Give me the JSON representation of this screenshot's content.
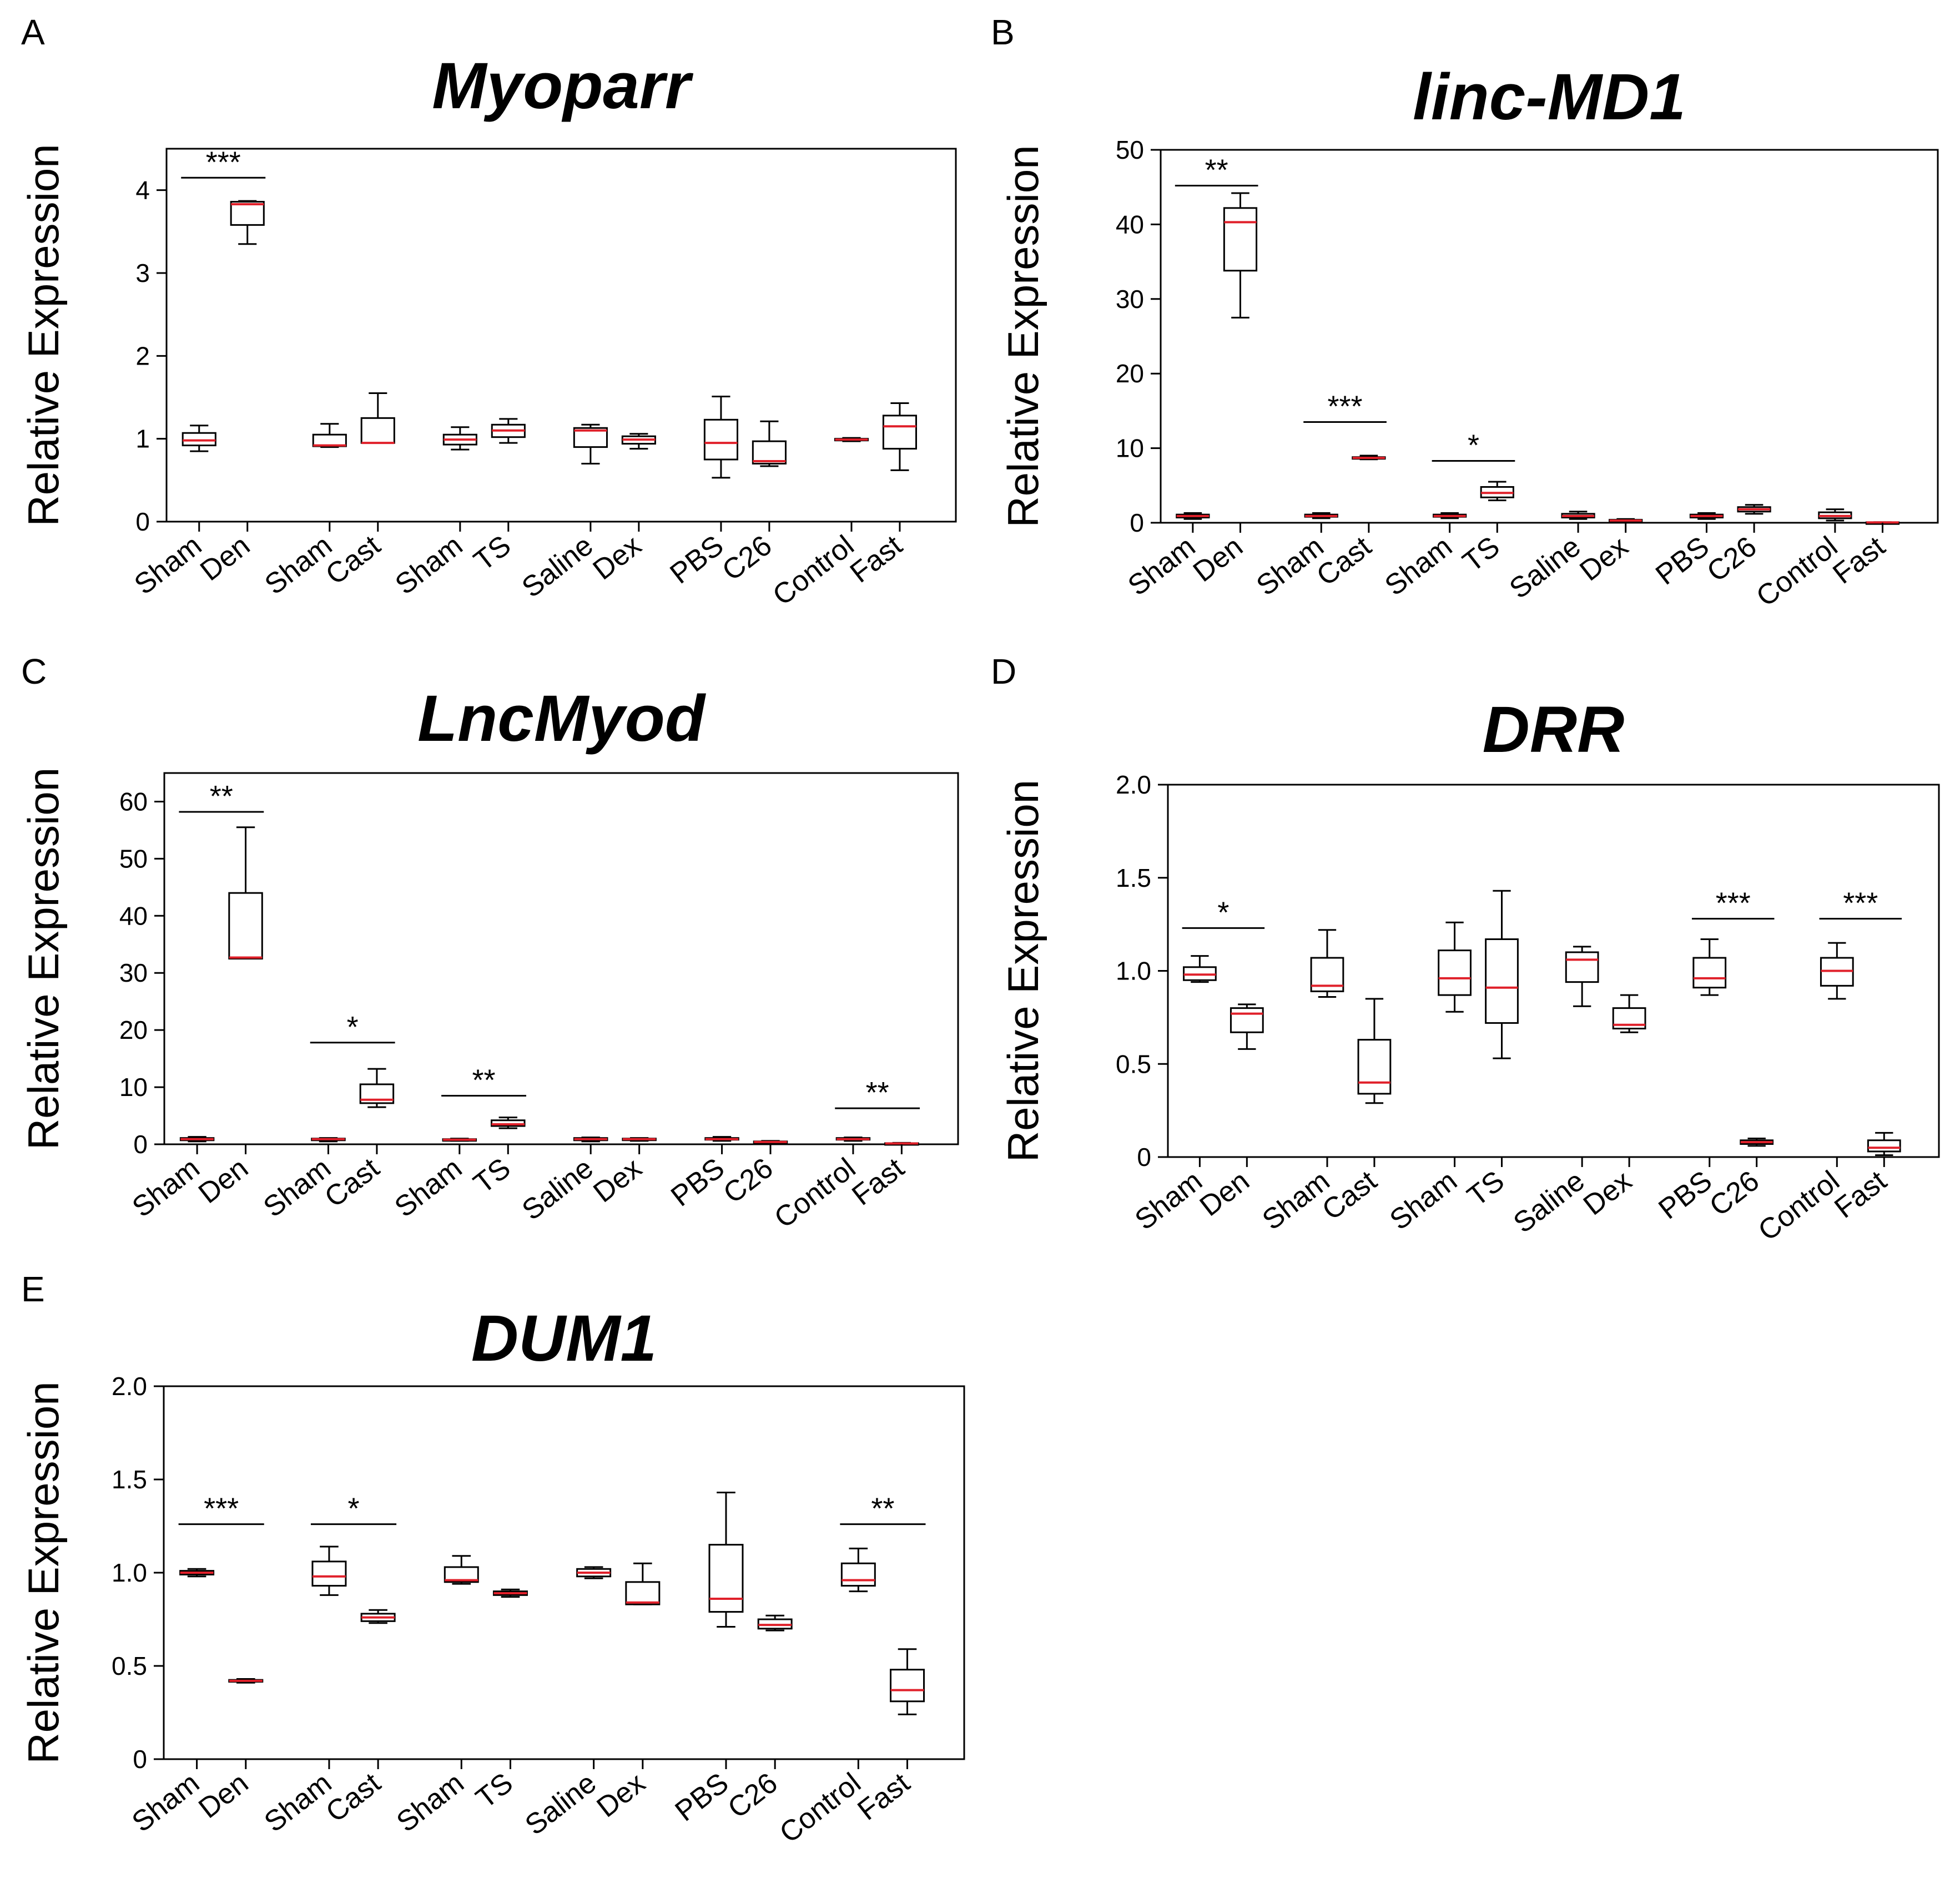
{
  "figure": {
    "chart_data": [
      {
        "type": "box",
        "panel": "A",
        "title": "Myoparr",
        "ylabel": "Relative Expression",
        "ylim": [
          0,
          4.5
        ],
        "yticks": [
          0,
          1,
          2,
          3,
          4
        ],
        "yticklabels": [
          "0",
          "1",
          "2",
          "3",
          "4"
        ],
        "grid": false,
        "categories": [
          "Sham",
          "Den",
          "Sham",
          "Cast",
          "Sham",
          "TS",
          "Saline",
          "Dex",
          "PBS",
          "C26",
          "Control",
          "Fast"
        ],
        "boxes": [
          {
            "min": 0.85,
            "q1": 0.92,
            "median": 0.98,
            "q3": 1.07,
            "max": 1.16
          },
          {
            "min": 3.35,
            "q1": 3.58,
            "median": 3.83,
            "q3": 3.86,
            "max": 3.87
          },
          {
            "min": 0.9,
            "q1": 0.91,
            "median": 0.92,
            "q3": 1.05,
            "max": 1.18
          },
          {
            "min": 0.95,
            "q1": 0.95,
            "median": 0.95,
            "q3": 1.25,
            "max": 1.55
          },
          {
            "min": 0.87,
            "q1": 0.93,
            "median": 0.99,
            "q3": 1.05,
            "max": 1.14
          },
          {
            "min": 0.95,
            "q1": 1.02,
            "median": 1.1,
            "q3": 1.17,
            "max": 1.24
          },
          {
            "min": 0.7,
            "q1": 0.9,
            "median": 1.1,
            "q3": 1.13,
            "max": 1.17
          },
          {
            "min": 0.88,
            "q1": 0.94,
            "median": 0.99,
            "q3": 1.03,
            "max": 1.06
          },
          {
            "min": 0.53,
            "q1": 0.75,
            "median": 0.95,
            "q3": 1.23,
            "max": 1.51
          },
          {
            "min": 0.67,
            "q1": 0.7,
            "median": 0.73,
            "q3": 0.97,
            "max": 1.21
          },
          {
            "min": 0.97,
            "q1": 0.98,
            "median": 0.99,
            "q3": 1.0,
            "max": 1.01
          },
          {
            "min": 0.62,
            "q1": 0.88,
            "median": 1.15,
            "q3": 1.28,
            "max": 1.43
          }
        ],
        "significance": [
          {
            "pair": [
              0,
              1
            ],
            "label": "***",
            "level": 4.15
          }
        ]
      },
      {
        "type": "box",
        "panel": "B",
        "title": "linc-MD1",
        "ylabel": "Relative Expression",
        "ylim": [
          0,
          50
        ],
        "yticks": [
          0,
          10,
          20,
          30,
          40,
          50
        ],
        "yticklabels": [
          "0",
          "10",
          "20",
          "30",
          "40",
          "50"
        ],
        "grid": false,
        "categories": [
          "Sham",
          "Den",
          "Sham",
          "Cast",
          "Sham",
          "TS",
          "Saline",
          "Dex",
          "PBS",
          "C26",
          "Control",
          "Fast"
        ],
        "boxes": [
          {
            "min": 0.5,
            "q1": 0.7,
            "median": 0.9,
            "q3": 1.1,
            "max": 1.3
          },
          {
            "min": 27.5,
            "q1": 33.8,
            "median": 40.3,
            "q3": 42.2,
            "max": 44.2
          },
          {
            "min": 0.6,
            "q1": 0.8,
            "median": 0.9,
            "q3": 1.1,
            "max": 1.3
          },
          {
            "min": 8.5,
            "q1": 8.6,
            "median": 8.7,
            "q3": 8.8,
            "max": 9.0
          },
          {
            "min": 0.6,
            "q1": 0.8,
            "median": 0.9,
            "q3": 1.1,
            "max": 1.3
          },
          {
            "min": 3.0,
            "q1": 3.4,
            "median": 4.0,
            "q3": 4.8,
            "max": 5.5
          },
          {
            "min": 0.5,
            "q1": 0.7,
            "median": 0.9,
            "q3": 1.2,
            "max": 1.5
          },
          {
            "min": 0.1,
            "q1": 0.2,
            "median": 0.3,
            "q3": 0.4,
            "max": 0.5
          },
          {
            "min": 0.5,
            "q1": 0.7,
            "median": 0.9,
            "q3": 1.1,
            "max": 1.3
          },
          {
            "min": 1.2,
            "q1": 1.5,
            "median": 1.8,
            "q3": 2.1,
            "max": 2.4
          },
          {
            "min": 0.3,
            "q1": 0.6,
            "median": 0.9,
            "q3": 1.4,
            "max": 1.8
          },
          {
            "min": 0.02,
            "q1": 0.04,
            "median": 0.05,
            "q3": 0.06,
            "max": 0.08
          }
        ],
        "significance": [
          {
            "pair": [
              0,
              1
            ],
            "label": "**",
            "level": 45.2
          },
          {
            "pair": [
              2,
              3
            ],
            "label": "***",
            "level": 13.5
          },
          {
            "pair": [
              4,
              5
            ],
            "label": "*",
            "level": 8.3
          }
        ]
      },
      {
        "type": "box",
        "panel": "C",
        "title": "LncMyod",
        "ylabel": "Relative Expression",
        "ylim": [
          0,
          65
        ],
        "yticks": [
          0,
          10,
          20,
          30,
          40,
          50,
          60
        ],
        "yticklabels": [
          "0",
          "10",
          "20",
          "30",
          "40",
          "50",
          "60"
        ],
        "grid": false,
        "categories": [
          "Sham",
          "Den",
          "Sham",
          "Cast",
          "Sham",
          "TS",
          "Saline",
          "Dex",
          "PBS",
          "C26",
          "Control",
          "Fast"
        ],
        "boxes": [
          {
            "min": 0.5,
            "q1": 0.7,
            "median": 0.9,
            "q3": 1.1,
            "max": 1.3
          },
          {
            "min": 32.5,
            "q1": 32.5,
            "median": 32.7,
            "q3": 44.0,
            "max": 55.5
          },
          {
            "min": 0.5,
            "q1": 0.7,
            "median": 0.9,
            "q3": 1.0,
            "max": 1.1
          },
          {
            "min": 6.5,
            "q1": 7.2,
            "median": 7.8,
            "q3": 10.5,
            "max": 13.2
          },
          {
            "min": 0.6,
            "q1": 0.7,
            "median": 0.8,
            "q3": 0.9,
            "max": 1.0
          },
          {
            "min": 2.8,
            "q1": 3.2,
            "median": 3.5,
            "q3": 4.2,
            "max": 4.7
          },
          {
            "min": 0.5,
            "q1": 0.7,
            "median": 0.9,
            "q3": 1.1,
            "max": 1.2
          },
          {
            "min": 0.6,
            "q1": 0.8,
            "median": 0.9,
            "q3": 1.0,
            "max": 1.1
          },
          {
            "min": 0.6,
            "q1": 0.8,
            "median": 0.9,
            "q3": 1.1,
            "max": 1.3
          },
          {
            "min": 0.2,
            "q1": 0.3,
            "median": 0.4,
            "q3": 0.5,
            "max": 0.6
          },
          {
            "min": 0.6,
            "q1": 0.8,
            "median": 0.9,
            "q3": 1.1,
            "max": 1.2
          },
          {
            "min": 0.05,
            "q1": 0.1,
            "median": 0.15,
            "q3": 0.2,
            "max": 0.25
          }
        ],
        "significance": [
          {
            "pair": [
              0,
              1
            ],
            "label": "**",
            "level": 58.2
          },
          {
            "pair": [
              2,
              3
            ],
            "label": "*",
            "level": 17.8
          },
          {
            "pair": [
              4,
              5
            ],
            "label": "**",
            "level": 8.5
          },
          {
            "pair": [
              10,
              11
            ],
            "label": "**",
            "level": 6.3
          }
        ]
      },
      {
        "type": "box",
        "panel": "D",
        "title": "DRR",
        "ylabel": "Relative Expression",
        "ylim": [
          0,
          2.0
        ],
        "yticks": [
          0,
          0.5,
          1.0,
          1.5,
          2.0
        ],
        "yticklabels": [
          "0",
          "0.5",
          "1.0",
          "1.5",
          "2.0"
        ],
        "grid": false,
        "categories": [
          "Sham",
          "Den",
          "Sham",
          "Cast",
          "Sham",
          "TS",
          "Saline",
          "Dex",
          "PBS",
          "C26",
          "Control",
          "Fast"
        ],
        "boxes": [
          {
            "min": 0.94,
            "q1": 0.95,
            "median": 0.98,
            "q3": 1.02,
            "max": 1.08
          },
          {
            "min": 0.58,
            "q1": 0.67,
            "median": 0.77,
            "q3": 0.8,
            "max": 0.82
          },
          {
            "min": 0.86,
            "q1": 0.89,
            "median": 0.92,
            "q3": 1.07,
            "max": 1.22
          },
          {
            "min": 0.29,
            "q1": 0.34,
            "median": 0.4,
            "q3": 0.63,
            "max": 0.85
          },
          {
            "min": 0.78,
            "q1": 0.87,
            "median": 0.96,
            "q3": 1.11,
            "max": 1.26
          },
          {
            "min": 0.53,
            "q1": 0.72,
            "median": 0.91,
            "q3": 1.17,
            "max": 1.43
          },
          {
            "min": 0.81,
            "q1": 0.94,
            "median": 1.06,
            "q3": 1.1,
            "max": 1.13
          },
          {
            "min": 0.67,
            "q1": 0.69,
            "median": 0.71,
            "q3": 0.8,
            "max": 0.87
          },
          {
            "min": 0.87,
            "q1": 0.91,
            "median": 0.96,
            "q3": 1.07,
            "max": 1.17
          },
          {
            "min": 0.06,
            "q1": 0.07,
            "median": 0.08,
            "q3": 0.09,
            "max": 0.1
          },
          {
            "min": 0.85,
            "q1": 0.92,
            "median": 1.0,
            "q3": 1.07,
            "max": 1.15
          },
          {
            "min": 0.01,
            "q1": 0.03,
            "median": 0.05,
            "q3": 0.09,
            "max": 0.13
          }
        ],
        "significance": [
          {
            "pair": [
              0,
              1
            ],
            "label": "*",
            "level": 1.23
          },
          {
            "pair": [
              8,
              9
            ],
            "label": "***",
            "level": 1.28
          },
          {
            "pair": [
              10,
              11
            ],
            "label": "***",
            "level": 1.28
          }
        ]
      },
      {
        "type": "box",
        "panel": "E",
        "title": "DUM1",
        "ylabel": "Relative Expression",
        "ylim": [
          0,
          2.0
        ],
        "yticks": [
          0,
          0.5,
          1.0,
          1.5,
          2.0
        ],
        "yticklabels": [
          "0",
          "0.5",
          "1.0",
          "1.5",
          "2.0"
        ],
        "grid": false,
        "categories": [
          "Sham",
          "Den",
          "Sham",
          "Cast",
          "Sham",
          "TS",
          "Saline",
          "Dex",
          "PBS",
          "C26",
          "Control",
          "Fast"
        ],
        "boxes": [
          {
            "min": 0.98,
            "q1": 0.99,
            "median": 1.0,
            "q3": 1.01,
            "max": 1.02
          },
          {
            "min": 0.41,
            "q1": 0.415,
            "median": 0.42,
            "q3": 0.425,
            "max": 0.43
          },
          {
            "min": 0.88,
            "q1": 0.93,
            "median": 0.98,
            "q3": 1.06,
            "max": 1.14
          },
          {
            "min": 0.73,
            "q1": 0.74,
            "median": 0.76,
            "q3": 0.78,
            "max": 0.8
          },
          {
            "min": 0.94,
            "q1": 0.95,
            "median": 0.96,
            "q3": 1.03,
            "max": 1.09
          },
          {
            "min": 0.87,
            "q1": 0.88,
            "median": 0.89,
            "q3": 0.9,
            "max": 0.91
          },
          {
            "min": 0.97,
            "q1": 0.98,
            "median": 1.0,
            "q3": 1.02,
            "max": 1.03
          },
          {
            "min": 0.83,
            "q1": 0.83,
            "median": 0.84,
            "q3": 0.95,
            "max": 1.05
          },
          {
            "min": 0.71,
            "q1": 0.79,
            "median": 0.86,
            "q3": 1.15,
            "max": 1.43
          },
          {
            "min": 0.69,
            "q1": 0.7,
            "median": 0.72,
            "q3": 0.75,
            "max": 0.77
          },
          {
            "min": 0.9,
            "q1": 0.93,
            "median": 0.96,
            "q3": 1.05,
            "max": 1.13
          },
          {
            "min": 0.24,
            "q1": 0.31,
            "median": 0.37,
            "q3": 0.48,
            "max": 0.59
          }
        ],
        "significance": [
          {
            "pair": [
              0,
              1
            ],
            "label": "***",
            "level": 1.26
          },
          {
            "pair": [
              2,
              3
            ],
            "label": "*",
            "level": 1.26
          },
          {
            "pair": [
              10,
              11
            ],
            "label": "**",
            "level": 1.26
          }
        ]
      }
    ]
  },
  "colors": {
    "axis": "#000000",
    "box_edge": "#000000",
    "box_fill": "#ffffff",
    "median": "#e0202a",
    "background": "#ffffff"
  }
}
